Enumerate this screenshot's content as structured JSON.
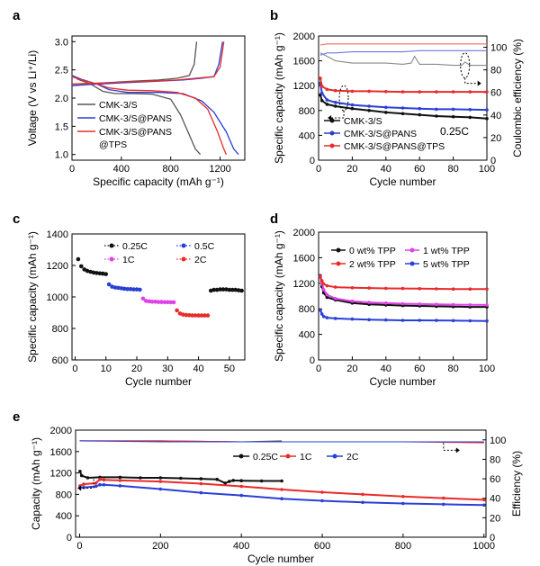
{
  "chart_data": [
    {
      "panel": "a",
      "type": "line",
      "xlabel": "Specific capacity (mAh g⁻¹)",
      "ylabel": "Voltage (V vs Li⁺/Li)",
      "xlim": [
        0,
        1400
      ],
      "ylim": [
        0.9,
        3.1
      ],
      "xticks": [
        0,
        400,
        800,
        1200
      ],
      "yticks": [
        1.0,
        1.5,
        2.0,
        2.5,
        3.0
      ],
      "legend_position": "lower-left",
      "series": [
        {
          "name": "CMK-3/S",
          "color": "#555555",
          "discharge": [
            [
              0,
              2.4
            ],
            [
              50,
              2.33
            ],
            [
              150,
              2.25
            ],
            [
              250,
              2.12
            ],
            [
              350,
              2.08
            ],
            [
              500,
              2.08
            ],
            [
              650,
              2.07
            ],
            [
              800,
              1.98
            ],
            [
              880,
              1.7
            ],
            [
              940,
              1.4
            ],
            [
              1000,
              1.1
            ],
            [
              1040,
              1.0
            ]
          ],
          "charge": [
            [
              0,
              2.22
            ],
            [
              100,
              2.24
            ],
            [
              250,
              2.27
            ],
            [
              500,
              2.3
            ],
            [
              700,
              2.32
            ],
            [
              850,
              2.35
            ],
            [
              950,
              2.4
            ],
            [
              990,
              2.6
            ],
            [
              1010,
              3.0
            ]
          ]
        },
        {
          "name": "CMK-3/S@PANS",
          "color": "#2a3fd6",
          "discharge": [
            [
              0,
              2.4
            ],
            [
              80,
              2.33
            ],
            [
              200,
              2.25
            ],
            [
              300,
              2.15
            ],
            [
              450,
              2.1
            ],
            [
              700,
              2.1
            ],
            [
              900,
              2.08
            ],
            [
              1050,
              1.95
            ],
            [
              1150,
              1.75
            ],
            [
              1250,
              1.4
            ],
            [
              1310,
              1.1
            ],
            [
              1350,
              1.0
            ]
          ],
          "charge": [
            [
              0,
              2.22
            ],
            [
              150,
              2.24
            ],
            [
              400,
              2.27
            ],
            [
              700,
              2.3
            ],
            [
              900,
              2.32
            ],
            [
              1050,
              2.35
            ],
            [
              1150,
              2.38
            ],
            [
              1190,
              2.6
            ],
            [
              1220,
              3.0
            ]
          ]
        },
        {
          "name": "CMK-3/S@PANS@TPS",
          "color": "#e82b2b",
          "discharge": [
            [
              0,
              2.38
            ],
            [
              80,
              2.32
            ],
            [
              200,
              2.25
            ],
            [
              300,
              2.18
            ],
            [
              450,
              2.14
            ],
            [
              650,
              2.13
            ],
            [
              850,
              2.1
            ],
            [
              1000,
              2.0
            ],
            [
              1100,
              1.8
            ],
            [
              1180,
              1.4
            ],
            [
              1230,
              1.1
            ],
            [
              1250,
              1.0
            ]
          ],
          "charge": [
            [
              0,
              2.25
            ],
            [
              150,
              2.26
            ],
            [
              400,
              2.28
            ],
            [
              650,
              2.3
            ],
            [
              850,
              2.32
            ],
            [
              1000,
              2.35
            ],
            [
              1150,
              2.38
            ],
            [
              1200,
              2.55
            ],
            [
              1230,
              3.0
            ]
          ]
        }
      ]
    },
    {
      "panel": "b",
      "type": "line",
      "xlabel": "Cycle number",
      "ylabel": "Specific capacity (mAh g⁻¹)",
      "y2label": "Coulombic efficiency (%)",
      "annotation": "0.25C",
      "xlim": [
        0,
        100
      ],
      "ylim": [
        0,
        2000
      ],
      "y2lim": [
        0,
        110
      ],
      "xticks": [
        0,
        20,
        40,
        60,
        80,
        100
      ],
      "yticks": [
        0,
        400,
        800,
        1200,
        1600,
        2000
      ],
      "y2ticks": [
        0,
        20,
        40,
        60,
        80,
        100
      ],
      "legend_position": "bottom-left",
      "series": [
        {
          "name": "CMK-3/S",
          "color": "#111111",
          "x": [
            1,
            2,
            5,
            10,
            20,
            30,
            40,
            50,
            60,
            70,
            80,
            90,
            100
          ],
          "values": [
            1050,
            960,
            900,
            870,
            830,
            800,
            770,
            750,
            730,
            710,
            700,
            690,
            670
          ]
        },
        {
          "name": "CMK-3/S@PANS",
          "color": "#2a3fd6",
          "x": [
            1,
            2,
            5,
            10,
            20,
            30,
            40,
            50,
            60,
            70,
            80,
            90,
            100
          ],
          "values": [
            1240,
            1080,
            970,
            930,
            890,
            870,
            850,
            840,
            830,
            820,
            820,
            815,
            810
          ]
        },
        {
          "name": "CMK-3/S@PANS@TPS",
          "color": "#e82b2b",
          "x": [
            1,
            2,
            5,
            10,
            20,
            30,
            40,
            50,
            60,
            70,
            80,
            90,
            100
          ],
          "values": [
            1320,
            1190,
            1140,
            1120,
            1110,
            1110,
            1105,
            1100,
            1100,
            1100,
            1100,
            1100,
            1100
          ]
        }
      ],
      "efficiency_series": [
        {
          "color": "#888888",
          "x": [
            1,
            5,
            10,
            20,
            30,
            40,
            50,
            55,
            57,
            60,
            70,
            80,
            85,
            87,
            90,
            100
          ],
          "values": [
            95,
            92,
            88,
            86,
            86,
            86,
            85,
            86,
            92,
            85,
            85,
            84,
            84,
            87,
            84,
            84
          ]
        },
        {
          "color": "#6a78e0",
          "x": [
            1,
            5,
            10,
            20,
            30,
            40,
            50,
            60,
            70,
            80,
            90,
            100
          ],
          "values": [
            93,
            95,
            95,
            96,
            96,
            96,
            96,
            97,
            97,
            97,
            97,
            97
          ]
        },
        {
          "color": "#f06a6a",
          "x": [
            1,
            5,
            10,
            20,
            30,
            40,
            50,
            60,
            70,
            80,
            90,
            100
          ],
          "values": [
            102,
            103,
            103,
            103,
            103,
            103,
            103,
            103,
            103,
            103,
            103,
            103
          ]
        }
      ]
    },
    {
      "panel": "c",
      "type": "scatter",
      "xlabel": "Cycle number",
      "ylabel": "Specific capacity (mAh g⁻¹)",
      "xlim": [
        -1,
        55
      ],
      "ylim": [
        600,
        1400
      ],
      "xticks": [
        0,
        10,
        20,
        30,
        40,
        50
      ],
      "yticks": [
        600,
        800,
        1000,
        1200,
        1400
      ],
      "legend_position": "top-right",
      "series": [
        {
          "name": "0.25C",
          "color": "#111111",
          "x": [
            1,
            2,
            3,
            4,
            5,
            6,
            7,
            8,
            9,
            10,
            44,
            45,
            46,
            47,
            48,
            49,
            50,
            51,
            52,
            53,
            54
          ],
          "values": [
            1240,
            1195,
            1175,
            1165,
            1160,
            1155,
            1152,
            1150,
            1148,
            1145,
            1040,
            1045,
            1045,
            1048,
            1048,
            1048,
            1045,
            1045,
            1045,
            1042,
            1040
          ]
        },
        {
          "name": "0.5C",
          "color": "#2a3fd6",
          "x": [
            11,
            12,
            13,
            14,
            15,
            16,
            17,
            18,
            19,
            20,
            21
          ],
          "values": [
            1080,
            1065,
            1060,
            1058,
            1055,
            1052,
            1050,
            1050,
            1048,
            1048,
            1046
          ]
        },
        {
          "name": "1C",
          "color": "#e040e8",
          "x": [
            22,
            23,
            24,
            25,
            26,
            27,
            28,
            29,
            30,
            31,
            32
          ],
          "values": [
            990,
            975,
            972,
            970,
            970,
            968,
            968,
            967,
            967,
            966,
            966
          ]
        },
        {
          "name": "2C",
          "color": "#e82b2b",
          "x": [
            33,
            34,
            35,
            36,
            37,
            38,
            39,
            40,
            41,
            42,
            43
          ],
          "values": [
            915,
            895,
            888,
            885,
            884,
            883,
            883,
            882,
            882,
            882,
            882
          ]
        }
      ]
    },
    {
      "panel": "d",
      "type": "line",
      "xlabel": "Cycle number",
      "ylabel": "Specific capacity (mAh g⁻¹)",
      "xlim": [
        0,
        100
      ],
      "ylim": [
        0,
        2000
      ],
      "xticks": [
        0,
        20,
        40,
        60,
        80,
        100
      ],
      "yticks": [
        0,
        400,
        800,
        1200,
        1600,
        2000
      ],
      "legend_position": "top",
      "series": [
        {
          "name": "0 wt% TPP",
          "color": "#111111",
          "x": [
            1,
            2,
            3,
            5,
            10,
            20,
            30,
            40,
            50,
            60,
            70,
            80,
            90,
            100
          ],
          "values": [
            1320,
            1150,
            1050,
            980,
            940,
            890,
            870,
            860,
            850,
            845,
            840,
            835,
            830,
            830
          ]
        },
        {
          "name": "1 wt% TPP",
          "color": "#e040e8",
          "x": [
            1,
            2,
            3,
            5,
            10,
            20,
            30,
            40,
            50,
            60,
            70,
            80,
            90,
            100
          ],
          "values": [
            1310,
            1200,
            1100,
            1020,
            960,
            920,
            900,
            890,
            880,
            875,
            870,
            866,
            862,
            860
          ]
        },
        {
          "name": "2 wt% TPP",
          "color": "#e82b2b",
          "x": [
            1,
            2,
            3,
            5,
            10,
            20,
            30,
            40,
            50,
            60,
            70,
            80,
            90,
            100
          ],
          "values": [
            1300,
            1240,
            1190,
            1160,
            1140,
            1130,
            1125,
            1120,
            1118,
            1115,
            1112,
            1110,
            1110,
            1110
          ]
        },
        {
          "name": "5 wt% TPP",
          "color": "#2a3fd6",
          "x": [
            1,
            2,
            3,
            5,
            10,
            20,
            30,
            40,
            50,
            60,
            70,
            80,
            90,
            100
          ],
          "values": [
            780,
            720,
            680,
            660,
            650,
            640,
            630,
            625,
            620,
            620,
            618,
            615,
            612,
            610
          ]
        }
      ]
    },
    {
      "panel": "e",
      "type": "line",
      "xlabel": "Cycle number",
      "ylabel": "Capacity (mAh g⁻¹)",
      "y2label": "Efficiency (%)",
      "xlim": [
        -10,
        1005
      ],
      "ylim": [
        0,
        2000
      ],
      "y2lim": [
        0,
        110
      ],
      "xticks": [
        0,
        200,
        400,
        600,
        800,
        1000
      ],
      "yticks": [
        0,
        400,
        800,
        1200,
        1600,
        2000
      ],
      "y2ticks": [
        0,
        20,
        40,
        60,
        80,
        100
      ],
      "legend_position": "top-center",
      "series": [
        {
          "name": "0.25C",
          "color": "#111111",
          "x": [
            1,
            5,
            20,
            50,
            100,
            150,
            200,
            250,
            300,
            340,
            360,
            370,
            380,
            400,
            450,
            500
          ],
          "values": [
            1230,
            1150,
            1110,
            1120,
            1120,
            1110,
            1110,
            1100,
            1090,
            1080,
            1010,
            1040,
            1060,
            1055,
            1050,
            1050
          ]
        },
        {
          "name": "1C",
          "color": "#e82b2b",
          "x": [
            1,
            10,
            40,
            50,
            60,
            100,
            200,
            300,
            400,
            500,
            600,
            700,
            800,
            900,
            1000
          ],
          "values": [
            960,
            990,
            1010,
            1080,
            1070,
            1060,
            1040,
            1000,
            950,
            890,
            840,
            800,
            760,
            730,
            700
          ]
        },
        {
          "name": "2C",
          "color": "#2a3fd6",
          "x": [
            1,
            10,
            40,
            50,
            60,
            100,
            200,
            300,
            400,
            500,
            600,
            700,
            800,
            900,
            1000
          ],
          "values": [
            920,
            930,
            950,
            980,
            980,
            960,
            900,
            830,
            780,
            720,
            680,
            650,
            630,
            615,
            600
          ]
        }
      ],
      "efficiency_series": [
        {
          "color": "#555555",
          "x": [
            0,
            200,
            400,
            500
          ],
          "values": [
            99,
            99,
            98,
            99
          ]
        },
        {
          "color": "#e82b2b",
          "x": [
            0,
            200,
            400,
            600,
            800,
            1000
          ],
          "values": [
            99,
            99,
            98,
            98,
            98,
            97
          ]
        },
        {
          "color": "#2a3fd6",
          "x": [
            0,
            200,
            400,
            600,
            800,
            1000
          ],
          "values": [
            99,
            98,
            98,
            98,
            98,
            98
          ]
        }
      ]
    }
  ]
}
